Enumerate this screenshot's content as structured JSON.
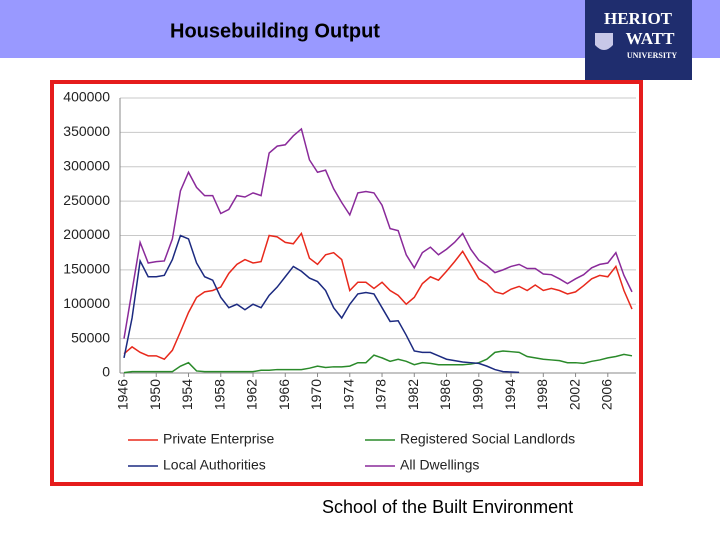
{
  "header": {
    "title": "Housebuilding Output"
  },
  "logo": {
    "line1": "HERIOT",
    "line2": "WATT",
    "line3": "UNIVERSITY"
  },
  "footer": "School of the Built Environment",
  "chart_data": {
    "type": "line",
    "x": [
      1946,
      1947,
      1948,
      1949,
      1950,
      1951,
      1952,
      1953,
      1954,
      1955,
      1956,
      1957,
      1958,
      1959,
      1960,
      1961,
      1962,
      1963,
      1964,
      1965,
      1966,
      1967,
      1968,
      1969,
      1970,
      1971,
      1972,
      1973,
      1974,
      1975,
      1976,
      1977,
      1978,
      1979,
      1980,
      1981,
      1982,
      1983,
      1984,
      1985,
      1986,
      1987,
      1988,
      1989,
      1990,
      1991,
      1992,
      1993,
      1994,
      1995,
      1996,
      1997,
      1998,
      1999,
      2000,
      2001,
      2002,
      2003,
      2004,
      2005,
      2006,
      2007,
      2008,
      2009
    ],
    "xlim": [
      1946,
      2009
    ],
    "xticks": [
      1946,
      1950,
      1954,
      1958,
      1962,
      1966,
      1970,
      1974,
      1978,
      1982,
      1986,
      1990,
      1994,
      1998,
      2002,
      2006
    ],
    "ylim": [
      0,
      400000
    ],
    "yticks": [
      0,
      50000,
      100000,
      150000,
      200000,
      250000,
      300000,
      350000,
      400000
    ],
    "grid": true,
    "legend": "bottom",
    "series": [
      {
        "name": "Private Enterprise",
        "color": "#e8291c",
        "values": [
          28000,
          38000,
          30000,
          25000,
          25000,
          20000,
          33000,
          60000,
          88000,
          110000,
          118000,
          120000,
          125000,
          145000,
          158000,
          165000,
          160000,
          162000,
          200000,
          198000,
          190000,
          188000,
          203000,
          167000,
          158000,
          172000,
          175000,
          165000,
          120000,
          132000,
          132000,
          123000,
          132000,
          120000,
          113000,
          100000,
          110000,
          130000,
          140000,
          135000,
          148000,
          162000,
          177000,
          157000,
          137000,
          130000,
          118000,
          115000,
          122000,
          126000,
          120000,
          128000,
          120000,
          123000,
          120000,
          115000,
          118000,
          127000,
          137000,
          142000,
          140000,
          155000,
          120000,
          93000
        ]
      },
      {
        "name": "Registered Social Landlords",
        "color": "#2a8a2a",
        "values": [
          500,
          2000,
          2000,
          2000,
          2000,
          2000,
          2000,
          10000,
          15000,
          3000,
          2000,
          2000,
          2000,
          2000,
          2000,
          2000,
          2000,
          4000,
          4000,
          5000,
          5000,
          5000,
          5000,
          7000,
          10000,
          8000,
          9000,
          9000,
          10000,
          15000,
          15000,
          26000,
          22000,
          17000,
          20000,
          17000,
          12000,
          15000,
          14000,
          12000,
          12000,
          12000,
          12000,
          13000,
          15000,
          20000,
          30000,
          32000,
          31000,
          30000,
          24000,
          22000,
          20000,
          19000,
          18000,
          15000,
          15000,
          14000,
          17000,
          19000,
          22000,
          24000,
          27000,
          25000
        ]
      },
      {
        "name": "Local Authorities",
        "color": "#1c2a80",
        "values": [
          22000,
          80000,
          163000,
          140000,
          140000,
          142000,
          165000,
          200000,
          195000,
          160000,
          140000,
          135000,
          110000,
          95000,
          100000,
          92000,
          100000,
          95000,
          113000,
          125000,
          140000,
          155000,
          148000,
          138000,
          133000,
          120000,
          95000,
          80000,
          100000,
          115000,
          117000,
          115000,
          95000,
          75000,
          76000,
          55000,
          32000,
          30000,
          30000,
          25000,
          20000,
          18000,
          16000,
          15000,
          14000,
          10000,
          5000,
          2000,
          1500,
          1000,
          null,
          null,
          null,
          null,
          null,
          null,
          null,
          null,
          null,
          null,
          null,
          null,
          null,
          null
        ]
      },
      {
        "name": "All Dwellings",
        "color": "#8a2a9a",
        "values": [
          50000,
          120000,
          190000,
          160000,
          162000,
          163000,
          195000,
          265000,
          292000,
          270000,
          258000,
          258000,
          232000,
          238000,
          258000,
          256000,
          262000,
          258000,
          320000,
          330000,
          332000,
          345000,
          355000,
          310000,
          292000,
          295000,
          268000,
          248000,
          230000,
          262000,
          264000,
          262000,
          244000,
          210000,
          207000,
          172000,
          153000,
          175000,
          183000,
          172000,
          180000,
          190000,
          203000,
          180000,
          164000,
          156000,
          146000,
          150000,
          155000,
          158000,
          152000,
          152000,
          144000,
          143000,
          137000,
          130000,
          137000,
          143000,
          153000,
          158000,
          160000,
          175000,
          142000,
          118000
        ]
      }
    ]
  }
}
